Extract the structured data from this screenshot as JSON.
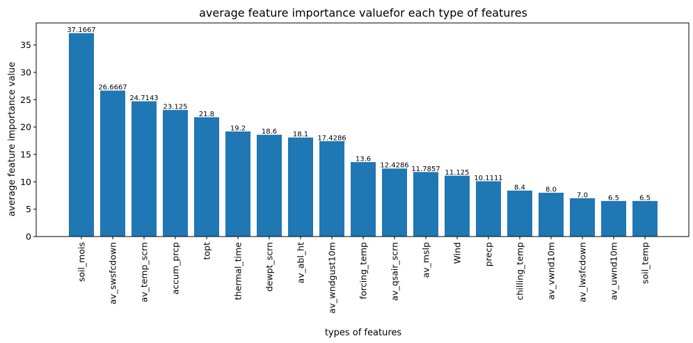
{
  "chart_data": {
    "type": "bar",
    "title": "average feature importance valuefor each type of features",
    "xlabel": "types of features",
    "ylabel": "average feature importance value",
    "categories": [
      "soil_mois",
      "av_swsfcdown",
      "av_temp_scrn",
      "accum_prcp",
      "topt",
      "thermal_time",
      "dewpt_scrn",
      "av_abl_ht",
      "av_wndgust10m",
      "forcing_temp",
      "av_qsair_scrn",
      "av_mslp",
      "Wind",
      "precp",
      "chilling_temp",
      "av_vwnd10m",
      "av_lwsfcdown",
      "av_uwnd10m",
      "soil_temp"
    ],
    "values": [
      37.1667,
      26.6667,
      24.7143,
      23.125,
      21.8,
      19.2,
      18.6,
      18.1,
      17.4286,
      13.6,
      12.4286,
      11.7857,
      11.125,
      10.1111,
      8.4,
      8.0,
      7.0,
      6.5,
      6.5
    ],
    "value_labels": [
      "37.1667",
      "26.6667",
      "24.7143",
      "23.125",
      "21.8",
      "19.2",
      "18.6",
      "18.1",
      "17.4286",
      "13.6",
      "12.4286",
      "11.7857",
      "11.125",
      "10.1111",
      "8.4",
      "8.0",
      "7.0",
      "6.5",
      "6.5"
    ],
    "yticks": [
      0,
      5,
      10,
      15,
      20,
      25,
      30,
      35
    ],
    "ylim": [
      0,
      39.025
    ],
    "grid": false,
    "bar_color": "#1f77b4"
  }
}
